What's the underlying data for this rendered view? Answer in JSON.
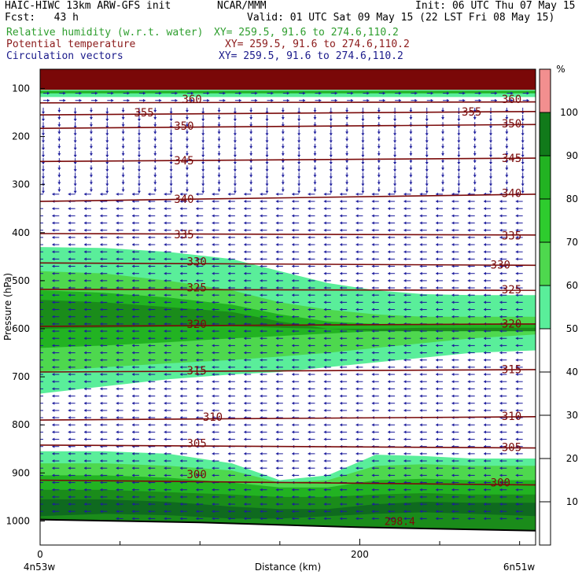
{
  "header": {
    "line1_left": "HAIC-HIWC 13km ARW-GFS init",
    "line1_mid": "NCAR/MMM",
    "line1_right": "Init: 06 UTC Thu 07 May 15",
    "line2_left": "Fcst:   43 h",
    "line2_right": "Valid: 01 UTC Sat 09 May 15 (22 LST Fri 08 May 15)",
    "fields": [
      {
        "name": "Relative humidity (w.r.t. water)",
        "xy": "XY= 259.5, 91.6 to 274.6,110.2",
        "color": "#2e9e2e"
      },
      {
        "name": "Potential temperature",
        "xy": "XY= 259.5, 91.6 to 274.6,110.2",
        "color": "#8b1a1a"
      },
      {
        "name": "Circulation vectors",
        "xy": "XY= 259.5, 91.6 to 274.6,110.2",
        "color": "#1a1a8b"
      }
    ]
  },
  "colors": {
    "rh_fills": [
      "#aaf0aa",
      "#5aee9a",
      "#4ed84e",
      "#22b322",
      "#1a8c1a",
      "#0f6a1f"
    ],
    "rh_top": "#7a0808",
    "rh_topmost": "#f29090",
    "theta_line": "#7a0a0a",
    "vector": "#1c1c9c",
    "terrain": "#000000"
  },
  "chart_data": {
    "type": "cross-section",
    "xlabel": "Distance (km)",
    "ylabel": "Pressure (hPa)",
    "xlim": [
      0,
      310
    ],
    "ylim": [
      1050,
      60
    ],
    "x_ticks": [
      0,
      200
    ],
    "y_ticks": [
      100,
      200,
      300,
      400,
      500,
      600,
      700,
      800,
      900,
      1000
    ],
    "x_endpoints": [
      "4n53w",
      "6n51w"
    ],
    "colorbar": {
      "unit": "%",
      "ticks": [
        10,
        20,
        30,
        40,
        50,
        60,
        70,
        80,
        90,
        100
      ],
      "bins": [
        {
          "range": [
            0,
            50
          ],
          "color": "#ffffff"
        },
        {
          "range": [
            50,
            60
          ],
          "color": "#5aee9a"
        },
        {
          "range": [
            60,
            70
          ],
          "color": "#4ed84e"
        },
        {
          "range": [
            70,
            80
          ],
          "color": "#2ecc2e"
        },
        {
          "range": [
            80,
            90
          ],
          "color": "#22b322"
        },
        {
          "range": [
            90,
            100
          ],
          "color": "#117a1a"
        },
        {
          "range": [
            100,
            110
          ],
          "color": "#f28f8f"
        }
      ]
    },
    "theta_contours": [
      {
        "value": 360,
        "pressure": [
          130,
          128
        ]
      },
      {
        "value": 355,
        "pressure": [
          155,
          148
        ]
      },
      {
        "value": 350,
        "pressure": [
          183,
          175
        ]
      },
      {
        "value": 345,
        "pressure": [
          252,
          245
        ]
      },
      {
        "value": 340,
        "pressure": [
          335,
          320
        ]
      },
      {
        "value": 335,
        "pressure": [
          402,
          405
        ]
      },
      {
        "value": 330,
        "pressure": [
          463,
          468
        ]
      },
      {
        "value": 325,
        "pressure": [
          518,
          520
        ]
      },
      {
        "value": 320,
        "pressure": [
          595,
          590
        ]
      },
      {
        "value": 315,
        "pressure": [
          690,
          685
        ]
      },
      {
        "value": 310,
        "pressure": [
          790,
          783
        ]
      },
      {
        "value": 305,
        "pressure": [
          842,
          848
        ]
      },
      {
        "value": 300,
        "pressure": [
          915,
          925
        ]
      }
    ],
    "theta_labels": [
      {
        "text": "360",
        "x": 95,
        "p": 122
      },
      {
        "text": "360",
        "x": 295,
        "p": 122
      },
      {
        "text": "355",
        "x": 65,
        "p": 150
      },
      {
        "text": "355",
        "x": 270,
        "p": 148
      },
      {
        "text": "350",
        "x": 90,
        "p": 178
      },
      {
        "text": "350",
        "x": 295,
        "p": 173
      },
      {
        "text": "345",
        "x": 90,
        "p": 250
      },
      {
        "text": "345",
        "x": 295,
        "p": 245
      },
      {
        "text": "340",
        "x": 90,
        "p": 330
      },
      {
        "text": "340",
        "x": 295,
        "p": 318
      },
      {
        "text": "335",
        "x": 90,
        "p": 404
      },
      {
        "text": "335",
        "x": 295,
        "p": 406
      },
      {
        "text": "330",
        "x": 98,
        "p": 460
      },
      {
        "text": "330",
        "x": 288,
        "p": 467
      },
      {
        "text": "325",
        "x": 98,
        "p": 514
      },
      {
        "text": "325",
        "x": 295,
        "p": 518
      },
      {
        "text": "320",
        "x": 98,
        "p": 590
      },
      {
        "text": "320",
        "x": 295,
        "p": 589
      },
      {
        "text": "315",
        "x": 98,
        "p": 687
      },
      {
        "text": "315",
        "x": 295,
        "p": 684
      },
      {
        "text": "310",
        "x": 108,
        "p": 783
      },
      {
        "text": "310",
        "x": 295,
        "p": 782
      },
      {
        "text": "305",
        "x": 98,
        "p": 838
      },
      {
        "text": "305",
        "x": 295,
        "p": 846
      },
      {
        "text": "300",
        "x": 98,
        "p": 903
      },
      {
        "text": "300",
        "x": 288,
        "p": 920
      }
    ],
    "terrain_label": {
      "text": "298.4",
      "x": 225,
      "p": 1000
    },
    "terrain_pressure": [
      997,
      1003,
      1013,
      1020
    ]
  }
}
